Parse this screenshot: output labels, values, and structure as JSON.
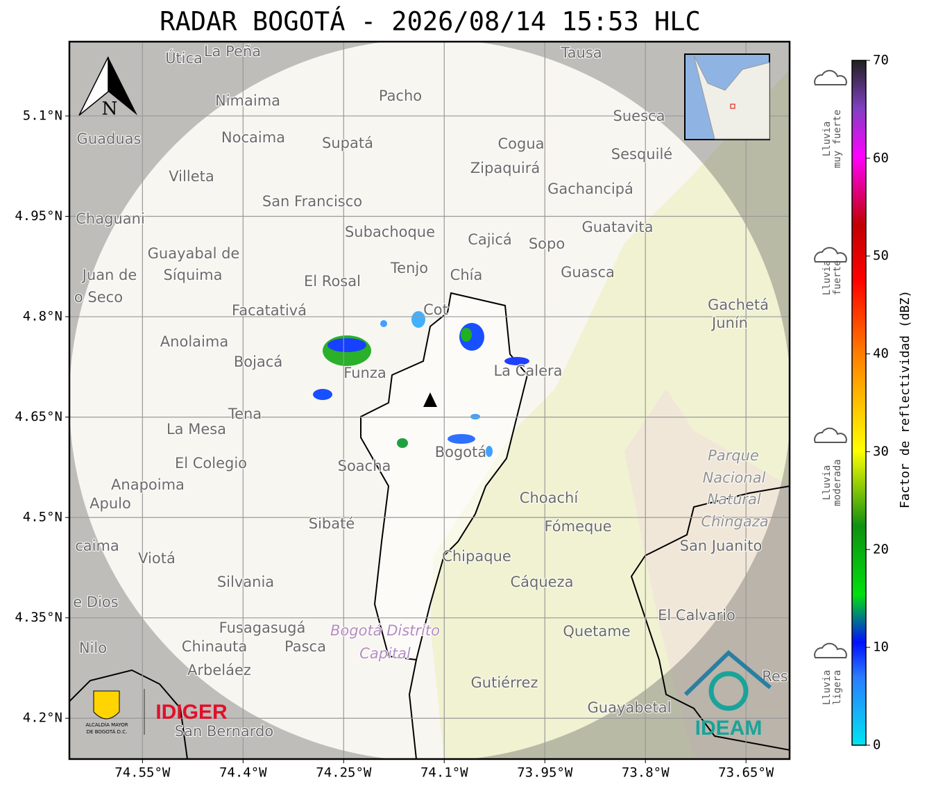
{
  "title": "RADAR BOGOTÁ - 2026/08/14 15:53 HLC",
  "map": {
    "xlim": [
      -74.659,
      -73.585
    ],
    "ylim": [
      4.139,
      5.211
    ],
    "xticks": [
      {
        "value": -74.55,
        "label": "74.55°W"
      },
      {
        "value": -74.4,
        "label": "74.4°W"
      },
      {
        "value": -74.25,
        "label": "74.25°W"
      },
      {
        "value": -74.1,
        "label": "74.1°W"
      },
      {
        "value": -73.95,
        "label": "73.95°W"
      },
      {
        "value": -73.8,
        "label": "73.8°W"
      },
      {
        "value": -73.65,
        "label": "73.65°W"
      }
    ],
    "yticks": [
      {
        "value": 5.1,
        "label": "5.1°N"
      },
      {
        "value": 4.95,
        "label": "4.95°N"
      },
      {
        "value": 4.8,
        "label": "4.8°N"
      },
      {
        "value": 4.65,
        "label": "4.65°N"
      },
      {
        "value": 4.5,
        "label": "4.5°N"
      },
      {
        "value": 4.35,
        "label": "4.35°N"
      },
      {
        "value": 4.2,
        "label": "4.2°N"
      }
    ],
    "grid": true,
    "places": [
      "Útica",
      "La Peña",
      "Tausa",
      "Pacho",
      "Nimaima",
      "Suesca",
      "Guaduas",
      "Nocaima",
      "Supatá",
      "Cogua",
      "Sesquilé",
      "Zipaquirá",
      "Villeta",
      "Gachancipá",
      "San Francisco",
      "Chaguani",
      "Guatavita",
      "Subachoque",
      "Cajicá",
      "Sopo",
      "Guayabal de",
      "Síquima",
      "Tenjo",
      "Juan de",
      "Chía",
      "Guasca",
      "El Rosal",
      "o Seco",
      "Gachetá",
      "Junín",
      "Facatativá",
      "Anolaima",
      "Bojacá",
      "Funza",
      "La Calera",
      "Tena",
      "La Mesa",
      "Parque",
      "Nacional",
      "Natural",
      "Chingaza",
      "El Colegio",
      "Soacha",
      "Bogotá",
      "Anapoima",
      "Apulo",
      "Choachí",
      "Sibaté",
      "Fómeque",
      "San Juanito",
      "caima",
      "Viotá",
      "Chipaque",
      "Silvania",
      "Cáqueza",
      "e Dios",
      "El Calvario",
      "Fusagasugá",
      "Bogotá Distrito",
      "Capital",
      "Quetame",
      "Nilo",
      "Chinauta",
      "Pasca",
      "Arbeláez",
      "Gutiérrez",
      "Res",
      "Guayabetal",
      "San Bernardo",
      "Cot"
    ]
  },
  "north": "N",
  "colorbar": {
    "label": "Factor de reflectividad (dBZ)",
    "lim": [
      0,
      70
    ],
    "ticks": [
      0,
      10,
      20,
      30,
      40,
      50,
      60,
      70
    ]
  },
  "rain_categories": [
    [
      "Lluvia",
      "muy fuerte"
    ],
    [
      "Lluvia",
      "fuerte"
    ],
    [
      "Lluvia",
      "moderada"
    ],
    [
      "Lluvia",
      "ligera"
    ]
  ],
  "logos": {
    "alcaldia": [
      "ALCALDÍA MAYOR",
      "DE BOGOTÁ D.C."
    ],
    "idiger": "IDIGER",
    "ideam": "IDEAM"
  }
}
